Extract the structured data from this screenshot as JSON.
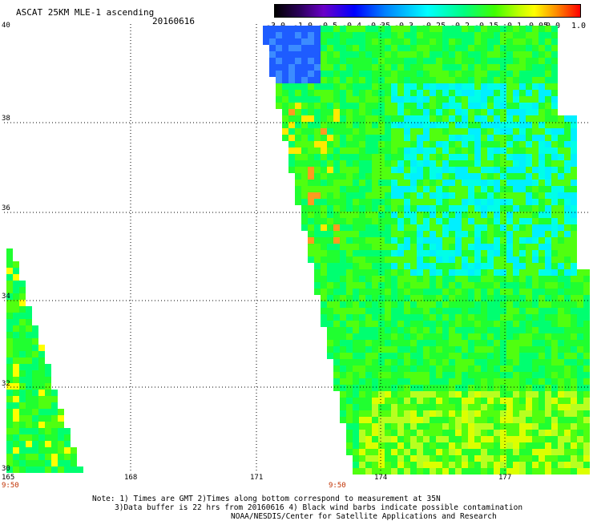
{
  "header": {
    "title": "ASCAT 25KM MLE-1 ascending",
    "date": "20160616"
  },
  "colorbar": {
    "labels": [
      "-3.0",
      "-1.0",
      "-0.5",
      "-0.4",
      "-0.35",
      "-0.3",
      "-0.25",
      "-0.2",
      "-0.15",
      "-0.1",
      "-0.05",
      "0.0",
      "1.0"
    ],
    "colors": [
      "#000000",
      "#4b0096",
      "#0000ff",
      "#0080ff",
      "#00ffff",
      "#00ff80",
      "#40ff00",
      "#c0ff00",
      "#ffff00",
      "#ff9000",
      "#ff0000"
    ]
  },
  "map": {
    "lon_ticks": [
      "165",
      "168",
      "171",
      "174",
      "177"
    ],
    "lat_ticks": [
      "40",
      "38",
      "36",
      "34",
      "32",
      "30"
    ],
    "times": [
      "9:50",
      "9:50"
    ]
  },
  "notes": {
    "line1": "Note: 1) Times are GMT 2)Times along bottom correspond to measurement at 35N",
    "line2": "3)Data buffer is 22 hrs from 20160616 4) Black wind barbs indicate possible contamination",
    "line3": "NOAA/NESDIS/Center for Satellite Applications and Research"
  }
}
